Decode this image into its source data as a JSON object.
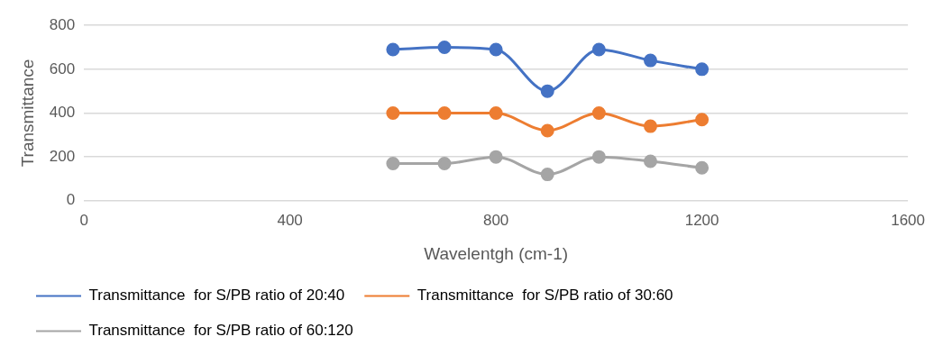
{
  "chart_data": {
    "type": "line",
    "xlabel": "Wavelentgh (cm-1)",
    "ylabel": "Transmittance",
    "x": [
      600,
      700,
      800,
      900,
      1000,
      1100,
      1200
    ],
    "series": [
      {
        "name": "Transmittance  for S/PB ratio of 20:40",
        "color": "#4472c4",
        "values": [
          690,
          700,
          690,
          500,
          690,
          640,
          600
        ]
      },
      {
        "name": "Transmittance  for S/PB ratio of 30:60",
        "color": "#ed7d31",
        "values": [
          400,
          400,
          400,
          320,
          400,
          340,
          370
        ]
      },
      {
        "name": "Transmittance  for S/PB ratio of 60:120",
        "color": "#a5a5a5",
        "values": [
          170,
          170,
          200,
          120,
          200,
          180,
          150
        ]
      }
    ],
    "xlim": [
      0,
      1600
    ],
    "xticks": [
      0,
      400,
      800,
      1200,
      1600
    ],
    "ylim": [
      0,
      800
    ],
    "yticks": [
      0,
      200,
      400,
      600,
      800
    ],
    "grid": "y",
    "legend": "bottom",
    "marker": "circle",
    "line_style": "solid"
  }
}
